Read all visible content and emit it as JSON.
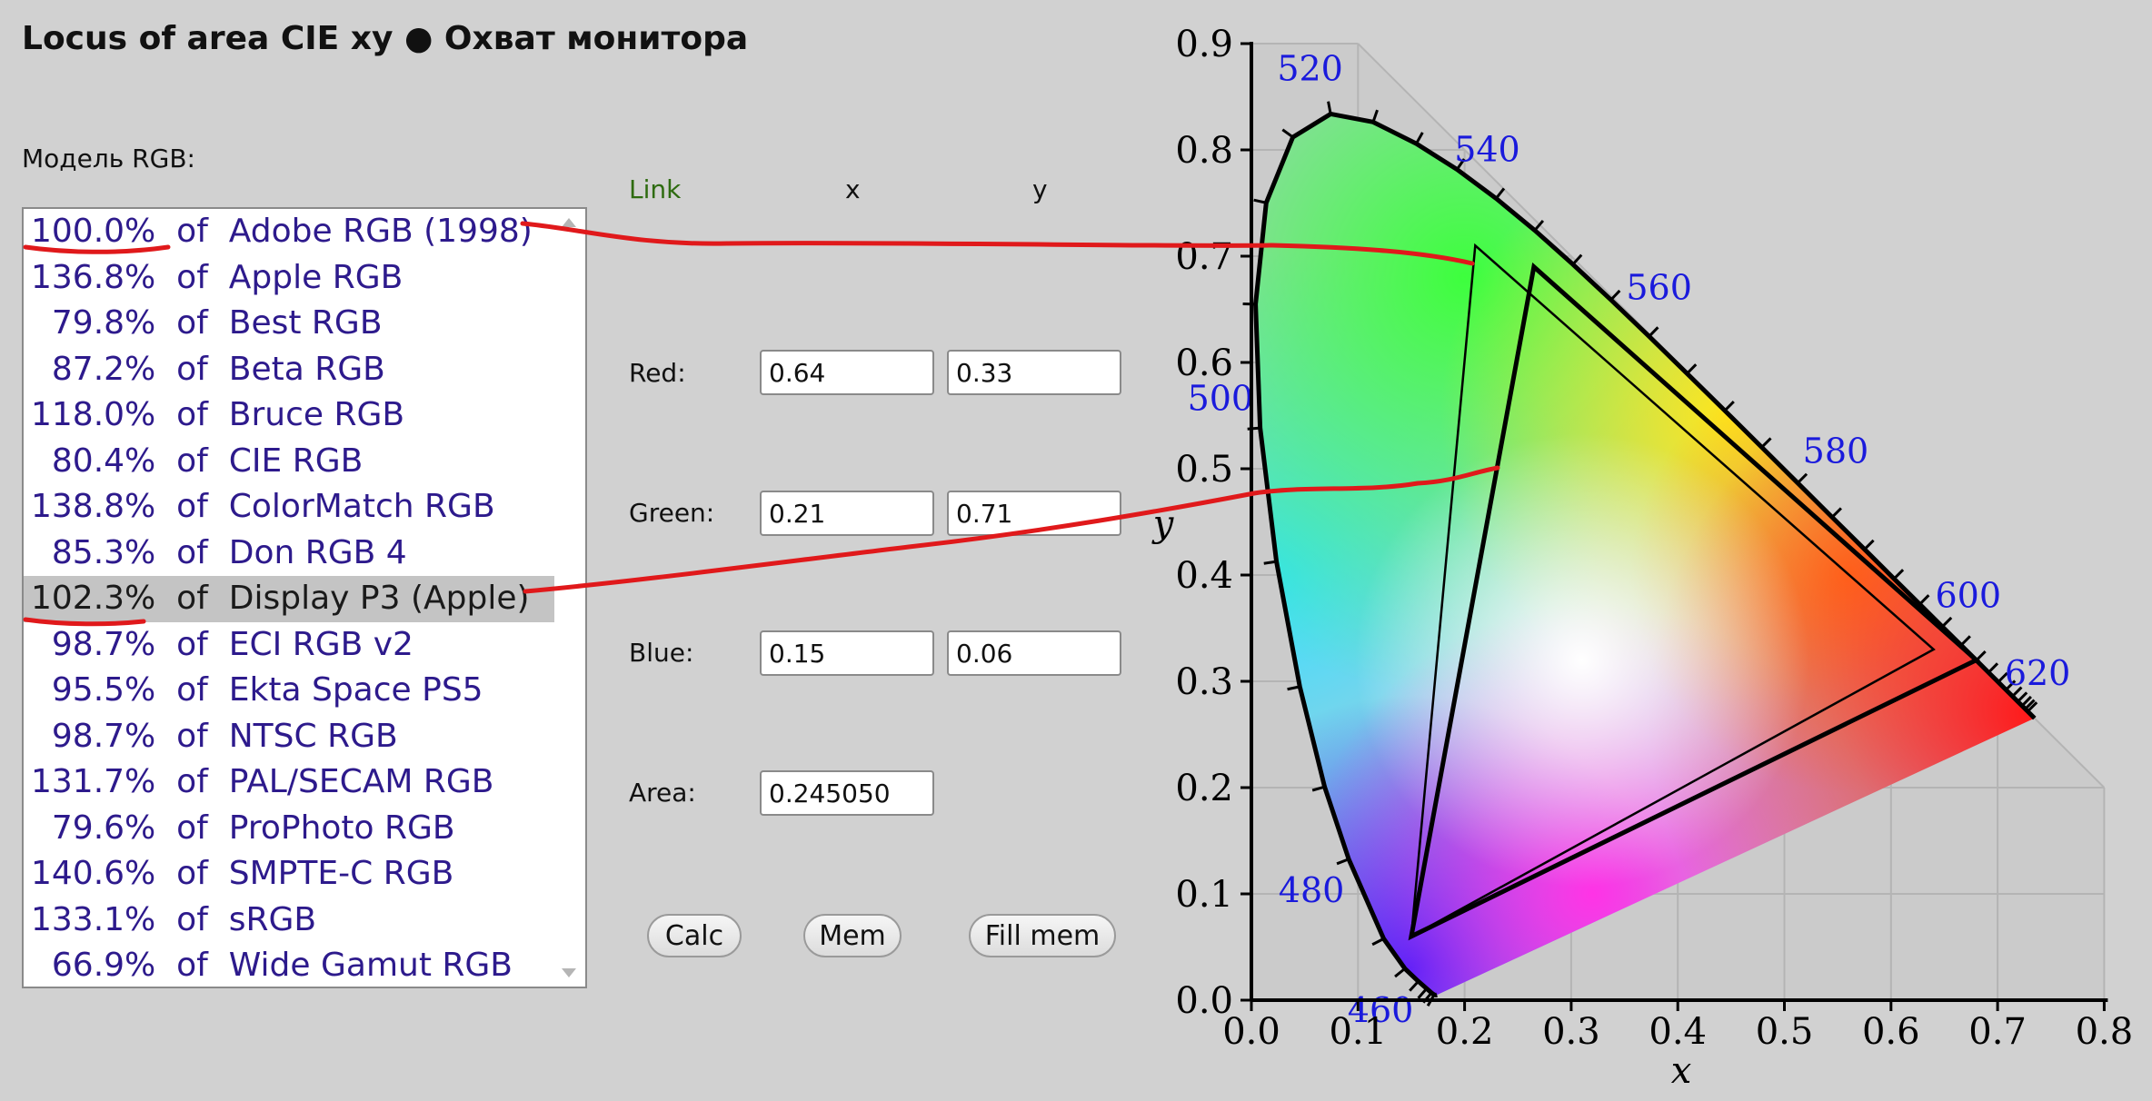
{
  "title": "Locus of area CIE xy  ●  Охват монитора",
  "model_label": "Модель RGB:",
  "rgb_models": [
    {
      "percent": "100.0%",
      "name": "Adobe RGB (1998)",
      "selected": false
    },
    {
      "percent": "136.8%",
      "name": "Apple RGB",
      "selected": false
    },
    {
      "percent": "79.8%",
      "name": "Best RGB",
      "selected": false
    },
    {
      "percent": "87.2%",
      "name": "Beta RGB",
      "selected": false
    },
    {
      "percent": "118.0%",
      "name": "Bruce RGB",
      "selected": false
    },
    {
      "percent": "80.4%",
      "name": "CIE RGB",
      "selected": false
    },
    {
      "percent": "138.8%",
      "name": "ColorMatch RGB",
      "selected": false
    },
    {
      "percent": "85.3%",
      "name": "Don RGB 4",
      "selected": false
    },
    {
      "percent": "102.3%",
      "name": "Display P3 (Apple)",
      "selected": true
    },
    {
      "percent": "98.7%",
      "name": "ECI RGB v2",
      "selected": false
    },
    {
      "percent": "95.5%",
      "name": "Ekta Space PS5",
      "selected": false
    },
    {
      "percent": "98.7%",
      "name": "NTSC RGB",
      "selected": false
    },
    {
      "percent": "131.7%",
      "name": "PAL/SECAM RGB",
      "selected": false
    },
    {
      "percent": "79.6%",
      "name": "ProPhoto RGB",
      "selected": false
    },
    {
      "percent": "140.6%",
      "name": "SMPTE-C RGB",
      "selected": false
    },
    {
      "percent": "133.1%",
      "name": "sRGB",
      "selected": false
    },
    {
      "percent": "66.9%",
      "name": "Wide Gamut RGB",
      "selected": false
    }
  ],
  "list_connector": "of",
  "form": {
    "link_header": "Link",
    "x_header": "x",
    "y_header": "y",
    "red": {
      "label": "Red:",
      "x": "0.64",
      "y": "0.33"
    },
    "green": {
      "label": "Green:",
      "x": "0.21",
      "y": "0.71"
    },
    "blue": {
      "label": "Blue:",
      "x": "0.15",
      "y": "0.06"
    },
    "area": {
      "label": "Area:",
      "value": "0.245050"
    }
  },
  "buttons": {
    "calc": "Calc",
    "mem": "Mem",
    "fill_mem": "Fill mem"
  },
  "colors": {
    "list_text": "#2d1a8c",
    "link_text": "#2e6b10",
    "wavelength_label": "#1a1adc",
    "annotation": "#e0191b",
    "background": "#d1d1d1"
  },
  "chart_data": {
    "type": "scatter",
    "xlabel": "x",
    "ylabel": "y",
    "xlim": [
      0.0,
      0.8
    ],
    "ylim": [
      0.0,
      0.9
    ],
    "xticks": [
      "0.0",
      "0.1",
      "0.2",
      "0.3",
      "0.4",
      "0.5",
      "0.6",
      "0.7",
      "0.8"
    ],
    "yticks": [
      "0.0",
      "0.1",
      "0.2",
      "0.3",
      "0.4",
      "0.5",
      "0.6",
      "0.7",
      "0.8",
      "0.9"
    ],
    "grid": true,
    "spectral_locus": [
      [
        0.1741,
        0.005
      ],
      [
        0.1738,
        0.0049
      ],
      [
        0.1733,
        0.0048
      ],
      [
        0.1726,
        0.0048
      ],
      [
        0.1714,
        0.0051
      ],
      [
        0.1689,
        0.0069
      ],
      [
        0.1644,
        0.0109
      ],
      [
        0.1566,
        0.0177
      ],
      [
        0.144,
        0.0297
      ],
      [
        0.1241,
        0.0578
      ],
      [
        0.0913,
        0.1327
      ],
      [
        0.0687,
        0.2007
      ],
      [
        0.0454,
        0.295
      ],
      [
        0.0235,
        0.4127
      ],
      [
        0.0082,
        0.5384
      ],
      [
        0.0039,
        0.6548
      ],
      [
        0.0139,
        0.7502
      ],
      [
        0.0389,
        0.812
      ],
      [
        0.0743,
        0.8338
      ],
      [
        0.1142,
        0.8262
      ],
      [
        0.1547,
        0.8059
      ],
      [
        0.1929,
        0.7816
      ],
      [
        0.2296,
        0.7543
      ],
      [
        0.2658,
        0.7243
      ],
      [
        0.3016,
        0.6923
      ],
      [
        0.3373,
        0.6589
      ],
      [
        0.3731,
        0.6245
      ],
      [
        0.4087,
        0.5896
      ],
      [
        0.4441,
        0.5547
      ],
      [
        0.4788,
        0.5202
      ],
      [
        0.5125,
        0.4866
      ],
      [
        0.5448,
        0.4544
      ],
      [
        0.5752,
        0.4242
      ],
      [
        0.6029,
        0.3965
      ],
      [
        0.627,
        0.3725
      ],
      [
        0.6482,
        0.3514
      ],
      [
        0.6658,
        0.334
      ],
      [
        0.6801,
        0.3197
      ],
      [
        0.6915,
        0.3083
      ],
      [
        0.7006,
        0.2993
      ],
      [
        0.7079,
        0.292
      ],
      [
        0.714,
        0.2859
      ],
      [
        0.719,
        0.2809
      ],
      [
        0.723,
        0.277
      ],
      [
        0.726,
        0.274
      ],
      [
        0.7283,
        0.2717
      ],
      [
        0.73,
        0.27
      ],
      [
        0.7347,
        0.2653
      ]
    ],
    "wavelength_labels": [
      {
        "label": "460",
        "x": 0.144,
        "y": 0.0297
      },
      {
        "label": "480",
        "x": 0.0913,
        "y": 0.1327
      },
      {
        "label": "500",
        "x": 0.0082,
        "y": 0.5384
      },
      {
        "label": "520",
        "x": 0.0743,
        "y": 0.8338
      },
      {
        "label": "540",
        "x": 0.2296,
        "y": 0.7543
      },
      {
        "label": "560",
        "x": 0.3731,
        "y": 0.6245
      },
      {
        "label": "580",
        "x": 0.5125,
        "y": 0.4866
      },
      {
        "label": "600",
        "x": 0.627,
        "y": 0.3725
      },
      {
        "label": "620",
        "x": 0.6915,
        "y": 0.3083
      }
    ],
    "gamuts": [
      {
        "points": [
          [
            0.64,
            0.33
          ],
          [
            0.21,
            0.71
          ],
          [
            0.15,
            0.06
          ]
        ],
        "emphasis": "thin"
      },
      {
        "points": [
          [
            0.68,
            0.32
          ],
          [
            0.265,
            0.69
          ],
          [
            0.15,
            0.06
          ]
        ],
        "emphasis": "bold"
      }
    ]
  }
}
